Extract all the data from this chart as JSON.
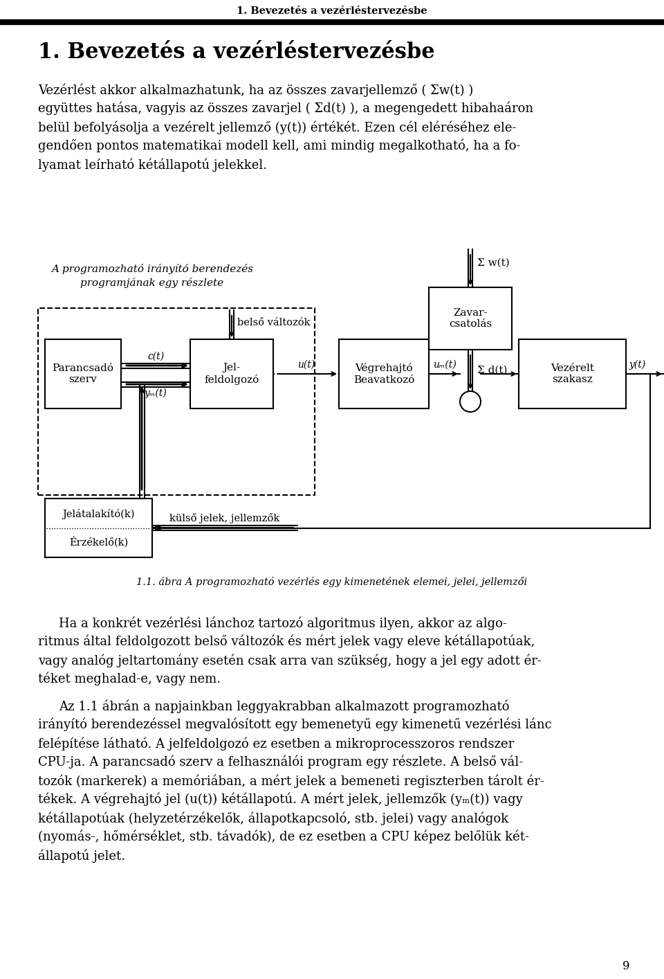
{
  "header_text": "1. Bevezetés a vezérléstervezésbe",
  "title_text": "1. Bevezetés a vezérléstervezésbe",
  "para1_lines": [
    "Vezérlést akkor alkalmazhatunk, ha az összes zavarjellemző ( Σw(t) )",
    "együttes hatása, vagyis az összes zavarjel ( Σd(t) ), a megengedett hibahaáron",
    "belül befolyásolja a vezérelt jellemző (y(t)) értékét. Ezen cél eléréséhez ele-",
    "gendően pontos matematikai modell kell, ami mindig megalkotható, ha a fo-",
    "lyamat leírható kétállapotú jelekkel."
  ],
  "diagram_label_1": "A programozható irányító berendezés",
  "diagram_label_2": "programjának egy részlete",
  "belsovaltozok": "belső változók",
  "block_parancsado": "Parancsadó\nszerv",
  "block_jelfeldolgozo": "Jel-\nfeldolgozó",
  "block_vegrehajto": "Végrehajtó\nBeavatkozó",
  "block_vezérelt": "Vezérelt\nszakasz",
  "block_zavarcsatolas": "Zavar-\ncsatolás",
  "block_jelalakito_1": "Jelátalakító(k)",
  "block_jelalakito_2": "Érzékelő(k)",
  "label_ct": "c(t)",
  "label_yMt": "yₘ(t)",
  "label_ut": "u(t)",
  "label_uMt": "uₘ(t)",
  "label_yt": "y(t)",
  "label_wt": "Σ w(t)",
  "label_dt": "Σ d(t)",
  "label_kulso": "külső jelek, jellemzők",
  "caption": "1.1. ábra A programozható vezérlés egy kimenetének elemei, jelei, jellemzői",
  "para2_lines": [
    "Ha a konkrét vezérlési lánchoz tartozó algoritmus ilyen, akkor az algo-",
    "ritmus által feldolgozott belső változók és mért jelek vagy eleve kétállapotúak,",
    "vagy analóg jeltartomány esetén csak arra van szükség, hogy a jel egy adott ér-",
    "téket meghalad-e, vagy nem."
  ],
  "para3_lines": [
    "Az 1.1 ábrán a napjainkban leggyakrabban alkalmazott programozható",
    "irányító berendezéssel megvalósított egy bemenetyű egy kimenetű vezérlési lánc",
    "felépítése látható. A jelfeldolgozó ez esetben a mikroprocesszoros rendszer",
    "CPU-ja. A parancsadó szerv a felhasználói program egy részlete. A belső vál-",
    "tozók (markerek) a memóriában, a mért jelek a bemeneti regiszterben tárolt ér-",
    "tékek. A végrehajtó jel (u(t)) kétállapotú. A mért jelek, jellemzők (yₘ(t)) vagy",
    "kétállapotúak (helyzetérzékelők, állapotkapcsoló, stb. jelei) vagy analógok",
    "(nyomás-, hőmérséklet, stb. távadók), de ez esetben a CPU képez belőlük két-",
    "állapotú jelet."
  ],
  "page_num": "9",
  "bg_color": "#ffffff",
  "text_color": "#000000"
}
